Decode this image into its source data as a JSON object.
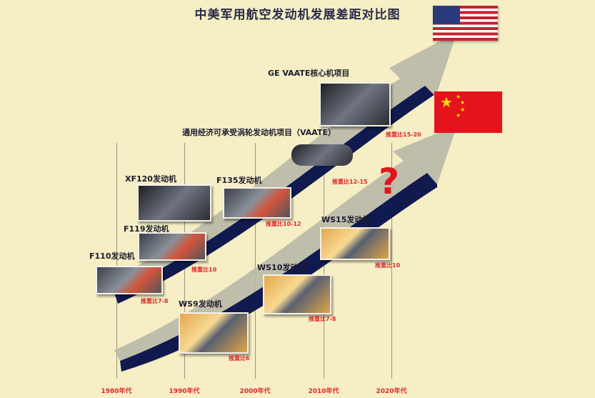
{
  "title": "中美军用航空发动机发展差距对比图",
  "years": [
    "1980年代",
    "1990年代",
    "2000年代",
    "2010年代",
    "2020年代"
  ],
  "us": {
    "flag": "usa-flag",
    "engines": [
      {
        "name": "F110发动机",
        "ratio": "推重比7-8"
      },
      {
        "name": "F119发动机",
        "ratio": "推重比10"
      },
      {
        "name": "XF120发动机"
      },
      {
        "name": "F135发动机",
        "ratio": "推重比10-12"
      },
      {
        "name": "通用经济可承受涡轮发动机项目（VAATE）",
        "ratio": "推重比12-15"
      },
      {
        "name": "GE VAATE核心机项目",
        "ratio": "推重比15-20"
      }
    ]
  },
  "china": {
    "flag": "china-flag",
    "engines": [
      {
        "name": "WS9发动机",
        "ratio": "推重比6"
      },
      {
        "name": "WS10发动机",
        "ratio": "推重比7-8"
      },
      {
        "name": "WS15发动机",
        "ratio": "推重比10"
      }
    ],
    "unknown": "?"
  },
  "colors": {
    "background": "#f6eec4",
    "arrow_fill": "#b9b8a8",
    "arrow_edge": "#111a4e",
    "ratio_text": "#e0282c"
  }
}
